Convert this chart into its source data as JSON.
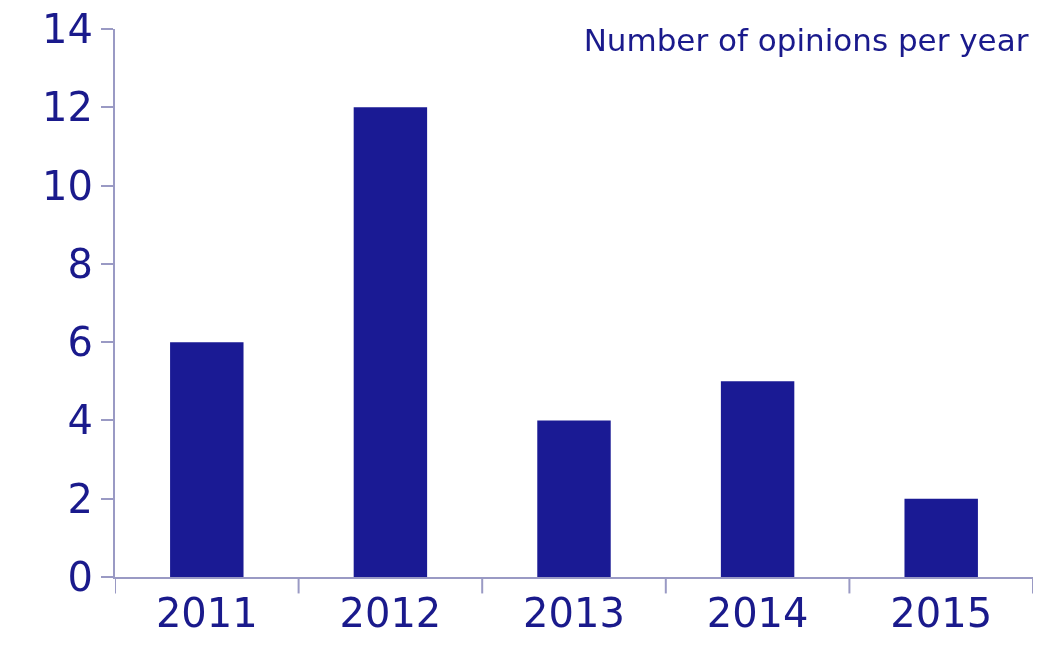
{
  "chart_data": {
    "type": "bar",
    "title": "Number of opinions per year",
    "categories": [
      "2011",
      "2012",
      "2013",
      "2014",
      "2015"
    ],
    "values": [
      6,
      12,
      4,
      5,
      2
    ],
    "color": "#1a1a94",
    "ylim": [
      0,
      14
    ],
    "yticks": [
      0,
      2,
      4,
      6,
      8,
      10,
      12,
      14
    ]
  }
}
